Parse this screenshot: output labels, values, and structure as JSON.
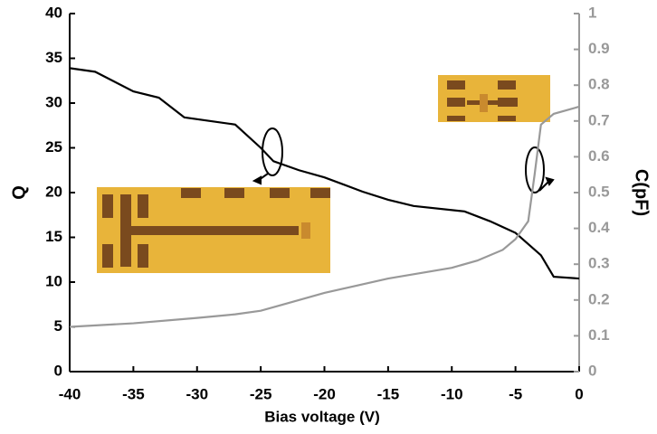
{
  "chart_data": {
    "type": "line",
    "xlabel": "Bias voltage (V)",
    "ylabel": "Q",
    "y2label": "C(pF)",
    "xlim": [
      -40,
      0
    ],
    "xticks": [
      -40,
      -35,
      -30,
      -25,
      -20,
      -15,
      -10,
      -5,
      0
    ],
    "ylim": [
      0,
      40
    ],
    "yticks": [
      0,
      5,
      10,
      15,
      20,
      25,
      30,
      35,
      40
    ],
    "y2lim": [
      0,
      1
    ],
    "y2ticks": [
      0,
      0.1,
      0.2,
      0.3,
      0.4,
      0.5,
      0.6,
      0.7,
      0.8,
      0.9,
      1
    ],
    "y2color": "#999999",
    "series": [
      {
        "color": "#000000",
        "x": [
          -40,
          -38,
          -35,
          -33,
          -31,
          -27,
          -25,
          -24,
          -22,
          -20,
          -17,
          -15,
          -13,
          -9,
          -7,
          -5,
          -3,
          -2,
          0
        ],
        "values": [
          33.9,
          33.5,
          31.3,
          30.6,
          28.4,
          27.6,
          25,
          23.5,
          22.5,
          21.7,
          20.1,
          19.2,
          18.5,
          17.9,
          16.8,
          15.5,
          13,
          10.6,
          10.4
        ]
      },
      {
        "color": "#999999",
        "axis": "y2",
        "x": [
          -40,
          -35,
          -30,
          -27,
          -25,
          -23,
          -20,
          -15,
          -10,
          -8,
          -6,
          -5,
          -4,
          -3.5,
          -3,
          -2,
          0
        ],
        "values": [
          0.125,
          0.135,
          0.15,
          0.16,
          0.17,
          0.19,
          0.22,
          0.26,
          0.29,
          0.31,
          0.34,
          0.37,
          0.42,
          0.55,
          0.69,
          0.72,
          0.74
        ]
      }
    ]
  }
}
